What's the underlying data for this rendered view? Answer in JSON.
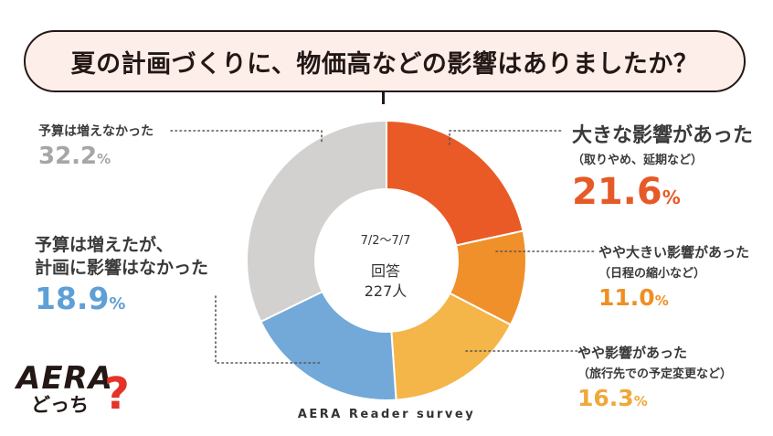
{
  "title": "夏の計画づくりに、物価高などの影響はありましたか？",
  "center": {
    "period": "7/2〜7/7",
    "respondents_label": "回答",
    "respondents": "227人"
  },
  "footer": "AERA Reader survey",
  "logo": {
    "brand": "AERA",
    "sub": "どっち",
    "mark": "?"
  },
  "chart_data": {
    "type": "pie",
    "style": "donut",
    "unit": "%",
    "slices": [
      {
        "label": "大きな影響があった",
        "sublabel": "（取りやめ、延期など）",
        "value": 21.6,
        "color": "#ea5a27"
      },
      {
        "label": "やや大きい影響があった",
        "sublabel": "（日程の縮小など）",
        "value": 11.0,
        "color": "#f0902a"
      },
      {
        "label": "やや影響があった",
        "sublabel": "（旅行先での予定変更など）",
        "value": 16.3,
        "color": "#f4b549"
      },
      {
        "label": "予算は増えたが、",
        "label2": "計画に影響はなかった",
        "value": 18.9,
        "color": "#72a9d8"
      },
      {
        "label": "予算は増えなかった",
        "value": 32.2,
        "color": "#d3d1cf"
      }
    ]
  }
}
